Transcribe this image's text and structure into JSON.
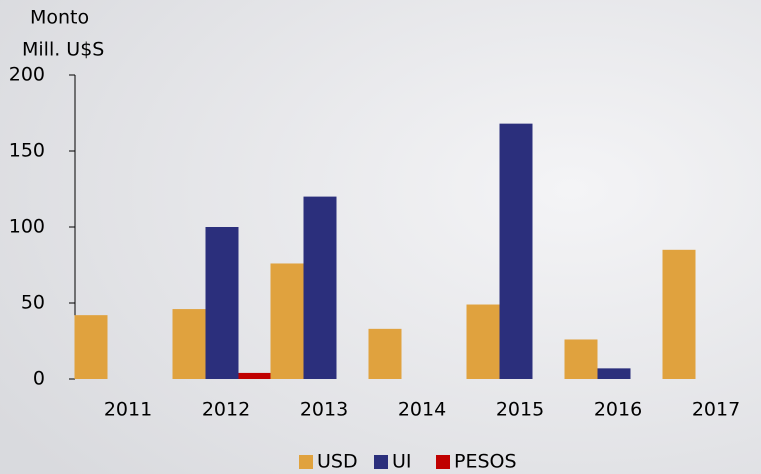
{
  "chart_data": {
    "type": "bar",
    "ylabel": [
      "Monto",
      "Mill. U$S"
    ],
    "categories": [
      "2011",
      "2012",
      "2013",
      "2014",
      "2015",
      "2016",
      "2017"
    ],
    "series": [
      {
        "name": "USD",
        "color": "#e0a23e",
        "values": [
          42,
          46,
          76,
          33,
          49,
          26,
          85
        ]
      },
      {
        "name": "UI",
        "color": "#2b2f7c",
        "values": [
          null,
          100,
          120,
          null,
          168,
          7,
          null
        ]
      },
      {
        "name": "PESOS",
        "color": "#c00000",
        "values": [
          null,
          4,
          null,
          null,
          null,
          null,
          null
        ]
      }
    ],
    "ylim": [
      0,
      200
    ],
    "yticks": [
      0,
      50,
      100,
      150,
      200
    ],
    "legend": "bottom"
  }
}
